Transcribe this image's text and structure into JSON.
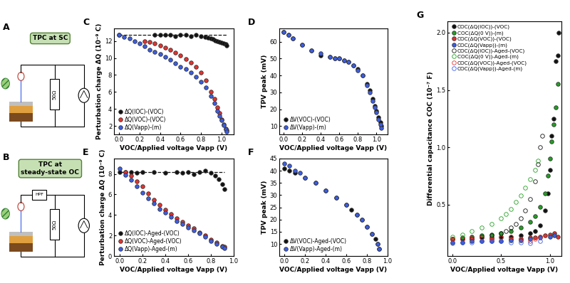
{
  "diagrams": [
    {
      "panel": "A",
      "label": "TPC at SC",
      "resistor": "50Ω"
    },
    {
      "panel": "B",
      "label": "TPC at\nsteady-state OC",
      "filter": "HPF",
      "resistor": "50Ω"
    }
  ],
  "chart_data": [
    {
      "panel": "C",
      "type": "scatter",
      "x_label": "VOC/Applied voltage Vapp (V)",
      "y_label": "Perturbation charge ΔQ (10⁻⁹ C)",
      "xlim": [
        -0.05,
        1.12
      ],
      "xticks": [
        0.0,
        0.2,
        0.4,
        0.6,
        0.8,
        1.0
      ],
      "ylim": [
        1,
        13.5
      ],
      "yticks": [
        2,
        4,
        6,
        8,
        10,
        12
      ],
      "legend": "lower left",
      "series": [
        {
          "name": "ΔQ(IOC)-(VOC)",
          "color": "#111111",
          "marker": "circle",
          "x": [
            0,
            0.35,
            0.4,
            0.45,
            0.5,
            0.55,
            0.6,
            0.65,
            0.7,
            0.75,
            0.8,
            0.84,
            0.87,
            0.9,
            0.92,
            0.94,
            0.96,
            0.98,
            1.0,
            1.02,
            1.04,
            1.05
          ],
          "values": [
            12.7,
            12.7,
            12.7,
            12.7,
            12.7,
            12.6,
            12.7,
            12.7,
            12.6,
            12.7,
            12.6,
            12.5,
            12.4,
            12.3,
            12.2,
            12.1,
            12.0,
            11.9,
            11.8,
            11.7,
            11.6,
            11.5
          ]
        },
        {
          "name": "ΔQ(VOC)-(VOC)",
          "color": "#e8322e",
          "marker": "circle",
          "x": [
            0.25,
            0.3,
            0.35,
            0.4,
            0.45,
            0.5,
            0.55,
            0.6,
            0.65,
            0.7,
            0.75,
            0.8,
            0.85,
            0.9,
            0.93,
            0.96,
            0.98,
            1.0,
            1.02,
            1.04,
            1.05
          ],
          "values": [
            12.0,
            11.9,
            11.7,
            11.5,
            11.2,
            11.0,
            10.6,
            10.3,
            9.9,
            9.5,
            9.0,
            8.3,
            7.4,
            6.0,
            5.2,
            4.2,
            3.5,
            2.8,
            2.2,
            1.7,
            1.5
          ]
        },
        {
          "name": "ΔQ(Vapp)-(m)",
          "color": "#3b5ee8",
          "marker": "circle",
          "x": [
            0,
            0.05,
            0.1,
            0.15,
            0.2,
            0.25,
            0.3,
            0.35,
            0.4,
            0.45,
            0.5,
            0.55,
            0.6,
            0.65,
            0.7,
            0.75,
            0.8,
            0.85,
            0.9,
            0.93,
            0.96,
            0.98,
            1.0,
            1.02,
            1.04,
            1.05
          ],
          "values": [
            12.7,
            12.5,
            12.3,
            12.0,
            11.7,
            11.4,
            11.0,
            10.7,
            10.5,
            10.1,
            9.8,
            9.4,
            9.0,
            8.7,
            8.3,
            7.8,
            7.2,
            6.5,
            5.5,
            4.7,
            3.8,
            3.2,
            2.7,
            2.1,
            1.6,
            1.3
          ]
        },
        {
          "type": "line",
          "line_style": "dashed",
          "color": "#111111",
          "x": [
            0,
            1.05
          ],
          "values": [
            12.7,
            12.7
          ]
        }
      ]
    },
    {
      "panel": "D",
      "type": "scatter",
      "x_label": "VOC/Applied voltage Vapp (V)",
      "y_label": "TPV peak (mV)",
      "xlim": [
        -0.05,
        1.12
      ],
      "xticks": [
        0.0,
        0.2,
        0.4,
        0.6,
        0.8,
        1.0
      ],
      "ylim": [
        5,
        68
      ],
      "yticks": [
        10,
        20,
        30,
        40,
        50,
        60
      ],
      "legend": "lower left",
      "series": [
        {
          "name": "ΔV(VOC)-(VOC)",
          "color": "#111111",
          "marker": "circle",
          "x": [
            0,
            0.05,
            0.1,
            0.2,
            0.3,
            0.4,
            0.5,
            0.55,
            0.6,
            0.65,
            0.7,
            0.75,
            0.8,
            0.85,
            0.9,
            0.93,
            0.96,
            0.98,
            1.0,
            1.02,
            1.04,
            1.05
          ],
          "values": [
            66,
            64,
            62,
            58,
            55,
            52,
            51,
            50,
            50,
            49,
            48,
            46,
            44,
            40,
            35,
            31,
            26,
            22,
            19,
            15,
            12,
            10
          ]
        },
        {
          "name": "ΔV(Vapp)-(m)",
          "color": "#3b5ee8",
          "marker": "circle",
          "x": [
            0,
            0.05,
            0.1,
            0.2,
            0.3,
            0.4,
            0.5,
            0.55,
            0.6,
            0.65,
            0.7,
            0.75,
            0.8,
            0.85,
            0.9,
            0.93,
            0.96,
            0.98,
            1.0,
            1.02,
            1.04,
            1.05
          ],
          "values": [
            66,
            64,
            62,
            58,
            55,
            53,
            51,
            50,
            50,
            49,
            48,
            46,
            43,
            40,
            34,
            30,
            25,
            21,
            18,
            14,
            11,
            9
          ]
        }
      ]
    },
    {
      "panel": "E",
      "type": "scatter",
      "x_label": "VOC/Applied voltage Vapp (V)",
      "y_label": "Perturbation charge ΔQ (10⁻⁹ C)",
      "xlim": [
        -0.05,
        1.0
      ],
      "xticks": [
        0.0,
        0.2,
        0.4,
        0.6,
        0.8,
        1.0
      ],
      "ylim": [
        0,
        9.5
      ],
      "yticks": [
        0,
        2,
        4,
        6,
        8
      ],
      "legend": "lower left",
      "series": [
        {
          "name": "ΔQ(IOC)-Aged-(VOC)",
          "color": "#111111",
          "marker": "circle",
          "x": [
            0,
            0.05,
            0.1,
            0.15,
            0.2,
            0.3,
            0.4,
            0.5,
            0.55,
            0.6,
            0.65,
            0.7,
            0.75,
            0.8,
            0.84,
            0.87,
            0.9,
            0.92
          ],
          "values": [
            8.2,
            8.2,
            8.2,
            8.1,
            8.2,
            8.2,
            8.1,
            8.2,
            8.1,
            8.2,
            8.0,
            8.2,
            8.3,
            8.1,
            7.8,
            7.5,
            7.0,
            6.5
          ]
        },
        {
          "name": "ΔQ(VOC)-Aged-(VOC)",
          "color": "#e8322e",
          "marker": "circle",
          "x": [
            0.05,
            0.1,
            0.15,
            0.2,
            0.25,
            0.3,
            0.35,
            0.4,
            0.45,
            0.5,
            0.55,
            0.6,
            0.65,
            0.7,
            0.75,
            0.8,
            0.85,
            0.9,
            0.92
          ],
          "values": [
            8.2,
            7.8,
            7.3,
            6.8,
            6.1,
            5.5,
            5.0,
            4.5,
            4.1,
            3.7,
            3.3,
            3.0,
            2.7,
            2.3,
            2.0,
            1.6,
            1.3,
            1.0,
            0.9
          ]
        },
        {
          "name": "ΔQ(Vapp)-Aged-(m)",
          "color": "#3b5ee8",
          "marker": "circle",
          "x": [
            0,
            0.05,
            0.1,
            0.15,
            0.2,
            0.25,
            0.3,
            0.35,
            0.4,
            0.45,
            0.5,
            0.55,
            0.6,
            0.65,
            0.7,
            0.75,
            0.8,
            0.85,
            0.9,
            0.92
          ],
          "values": [
            8.5,
            7.9,
            7.4,
            6.8,
            6.2,
            5.6,
            5.1,
            4.6,
            4.2,
            3.8,
            3.4,
            3.1,
            2.8,
            2.5,
            2.2,
            1.9,
            1.5,
            1.2,
            0.9,
            0.8
          ]
        },
        {
          "type": "line",
          "line_style": "dashed",
          "color": "#111111",
          "x": [
            0,
            0.92
          ],
          "values": [
            8.2,
            8.2
          ]
        }
      ]
    },
    {
      "panel": "F",
      "type": "scatter",
      "x_label": "VOC/Applied voltage Vapp (V)",
      "y_label": "TPV peak (mV)",
      "xlim": [
        -0.05,
        1.0
      ],
      "xticks": [
        0.0,
        0.2,
        0.4,
        0.6,
        0.8,
        1.0
      ],
      "ylim": [
        5,
        45
      ],
      "yticks": [
        10,
        15,
        20,
        25,
        30,
        35,
        40,
        45
      ],
      "legend": "lower left",
      "series": [
        {
          "name": "ΔV(VOC)-Aged-(VOC)",
          "color": "#111111",
          "marker": "circle",
          "x": [
            0,
            0.05,
            0.1,
            0.2,
            0.3,
            0.4,
            0.5,
            0.6,
            0.65,
            0.7,
            0.75,
            0.8,
            0.85,
            0.88,
            0.9,
            0.92
          ],
          "values": [
            41,
            40,
            39,
            37,
            35,
            32,
            29,
            26,
            24,
            22,
            20,
            17,
            14,
            12,
            10,
            8
          ]
        },
        {
          "name": "ΔV(Vapp)-Aged-(m)",
          "color": "#3b5ee8",
          "marker": "circle",
          "x": [
            0,
            0.05,
            0.1,
            0.15,
            0.2,
            0.3,
            0.4,
            0.5,
            0.6,
            0.7,
            0.75,
            0.8,
            0.85,
            0.9,
            0.92
          ],
          "values": [
            43,
            42,
            40,
            39,
            37,
            35,
            32,
            29,
            26,
            22,
            20,
            17,
            14,
            10,
            8
          ]
        }
      ]
    },
    {
      "panel": "G",
      "type": "scatter",
      "x_label": "VOC/Applied voltage Vapp (V)",
      "y_label": "Differential capacitance COC (10⁻⁷ F)",
      "xlim": [
        -0.05,
        1.12
      ],
      "xticks": [
        0.0,
        0.5,
        1.0
      ],
      "ylim": [
        0.05,
        2.1
      ],
      "yticks": [
        0.5,
        1.0,
        1.5,
        2.0
      ],
      "legend": "upper left",
      "series": [
        {
          "name": "COC(ΔQ(IOC))-(VOC)",
          "color": "#111111",
          "marker": "circle",
          "x": [
            0,
            0.1,
            0.2,
            0.3,
            0.4,
            0.5,
            0.6,
            0.7,
            0.8,
            0.85,
            0.9,
            0.95,
            0.98,
            1.0,
            1.02,
            1.04,
            1.06,
            1.08,
            1.09
          ],
          "values": [
            0.2,
            0.2,
            0.2,
            0.21,
            0.21,
            0.22,
            0.22,
            0.23,
            0.25,
            0.27,
            0.32,
            0.45,
            0.6,
            0.8,
            1.1,
            1.25,
            1.75,
            1.8,
            2.0
          ]
        },
        {
          "name": "COC(ΔQ(0 V))-(m)",
          "color": "#22a022",
          "marker": "circle",
          "x": [
            0,
            0.1,
            0.2,
            0.3,
            0.4,
            0.5,
            0.6,
            0.7,
            0.8,
            0.85,
            0.9,
            0.95,
            0.98,
            1.0,
            1.02,
            1.04,
            1.06,
            1.08
          ],
          "values": [
            0.2,
            0.21,
            0.22,
            0.23,
            0.24,
            0.25,
            0.27,
            0.3,
            0.35,
            0.4,
            0.48,
            0.6,
            0.75,
            0.9,
            1.05,
            1.2,
            1.35,
            1.55
          ]
        },
        {
          "name": "COC(ΔQ(VOC))-(VOC)",
          "color": "#e8322e",
          "marker": "circle",
          "x": [
            0,
            0.2,
            0.4,
            0.6,
            0.7,
            0.8,
            0.85,
            0.9,
            0.95,
            1.0,
            1.05,
            1.08
          ],
          "values": [
            0.2,
            0.2,
            0.2,
            0.2,
            0.2,
            0.21,
            0.21,
            0.22,
            0.23,
            0.24,
            0.25,
            0.22
          ]
        },
        {
          "name": "COC(ΔQ(Vapp))-(m)",
          "color": "#3b5ee8",
          "marker": "circle",
          "x": [
            0,
            0.1,
            0.2,
            0.3,
            0.4,
            0.5,
            0.6,
            0.7,
            0.8,
            0.9,
            1.0,
            1.05
          ],
          "values": [
            0.17,
            0.17,
            0.18,
            0.18,
            0.18,
            0.18,
            0.19,
            0.19,
            0.2,
            0.21,
            0.22,
            0.23
          ]
        },
        {
          "name": "COC(ΔQ(IOC))-Aged-(VOC)",
          "color": "#111111",
          "marker": "hollow",
          "x": [
            0,
            0.1,
            0.2,
            0.3,
            0.4,
            0.5,
            0.55,
            0.6,
            0.65,
            0.7,
            0.75,
            0.8,
            0.85,
            0.88,
            0.9,
            0.92
          ],
          "values": [
            0.2,
            0.2,
            0.21,
            0.22,
            0.23,
            0.25,
            0.27,
            0.3,
            0.33,
            0.38,
            0.45,
            0.55,
            0.7,
            0.85,
            1.0,
            1.1
          ]
        },
        {
          "name": "COC(ΔQ(0 V))-Aged-(m)",
          "color": "#22a022",
          "marker": "hollow",
          "x": [
            0,
            0.1,
            0.2,
            0.3,
            0.4,
            0.5,
            0.55,
            0.6,
            0.65,
            0.7,
            0.75,
            0.8,
            0.85,
            0.88
          ],
          "values": [
            0.22,
            0.24,
            0.27,
            0.3,
            0.33,
            0.38,
            0.42,
            0.46,
            0.52,
            0.58,
            0.65,
            0.72,
            0.8,
            0.88
          ]
        },
        {
          "name": "COC(ΔQ(VOC))-Aged-(VOC)",
          "color": "#e8322e",
          "marker": "hollow",
          "x": [
            0,
            0.1,
            0.2,
            0.3,
            0.4,
            0.5,
            0.6,
            0.7,
            0.8,
            0.85,
            0.9
          ],
          "values": [
            0.2,
            0.2,
            0.21,
            0.21,
            0.2,
            0.21,
            0.22,
            0.2,
            0.18,
            0.2,
            0.22
          ]
        },
        {
          "name": "COC(ΔQ(Vapp))-Aged-(m)",
          "color": "#3b5ee8",
          "marker": "hollow",
          "x": [
            0,
            0.1,
            0.2,
            0.3,
            0.4,
            0.5,
            0.6,
            0.7,
            0.8,
            0.9
          ],
          "values": [
            0.16,
            0.17,
            0.17,
            0.18,
            0.18,
            0.18,
            0.17,
            0.17,
            0.16,
            0.18
          ]
        }
      ]
    }
  ]
}
